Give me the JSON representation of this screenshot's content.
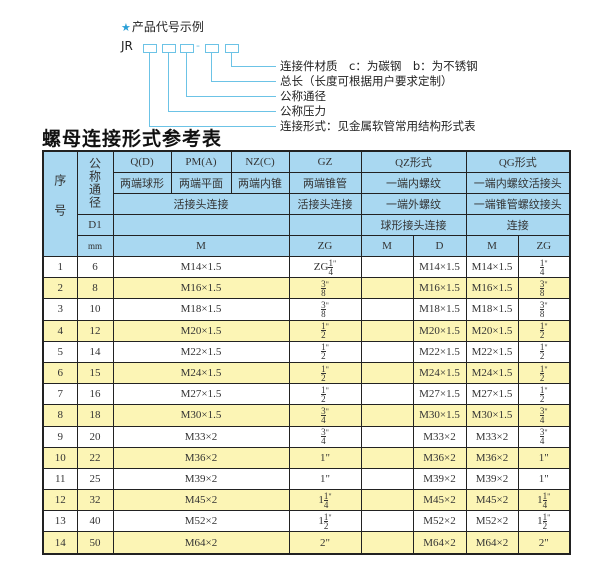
{
  "code_example": {
    "caption": "产品代号示例",
    "star_icon": "star-icon",
    "prefix": "JR",
    "separator": "-",
    "labels": [
      "连接件材质　c：为碳钢　b：为不锈钢",
      "总长（长度可根据用户要求定制）",
      "公称通径",
      "公称压力",
      "连接形式：见金属软管常用结构形式表"
    ]
  },
  "table_title": "螺母连接形式参考表",
  "table": {
    "header": {
      "seq": "序号",
      "nominal": "公称通径",
      "d1": "D1",
      "mm": "mm",
      "qd": "Q(D)",
      "pm": "PM(A)",
      "nz": "NZ(C)",
      "gz": "GZ",
      "qz": "QZ形式",
      "qg": "QG形式",
      "qd_desc": "两端球形",
      "pm_desc": "两端平面",
      "nz_desc": "两端内锥",
      "gz_desc": "两端锥管",
      "qz_desc1": "一端内螺纹",
      "qg_desc1": "一端内螺纹活接头",
      "union1": "活接头连接",
      "union2": "活接头连接",
      "qz_desc2": "一端外螺纹",
      "qg_desc2": "一端锥管螺纹接头",
      "qz_desc3": "球形接头连接",
      "qg_desc3": "连接",
      "m": "M",
      "zg": "ZG",
      "qz_m": "M",
      "qz_d": "D",
      "qg_m": "M",
      "qg_zg": "ZG"
    },
    "rows": [
      {
        "no": "1",
        "dn": "6",
        "m": "M14×1.5",
        "zg": {
          "pre": "ZG",
          "whole": "",
          "num": "1",
          "den": "4",
          "text": ""
        },
        "qz_m": "",
        "qz_d": "M14×1.5",
        "qg_m": "M14×1.5",
        "qg_zg": {
          "whole": "",
          "num": "1",
          "den": "4",
          "text": ""
        }
      },
      {
        "no": "2",
        "dn": "8",
        "m": "M16×1.5",
        "zg": {
          "pre": "",
          "whole": "",
          "num": "3",
          "den": "8",
          "text": ""
        },
        "qz_m": "",
        "qz_d": "M16×1.5",
        "qg_m": "M16×1.5",
        "qg_zg": {
          "whole": "",
          "num": "3",
          "den": "8",
          "text": ""
        }
      },
      {
        "no": "3",
        "dn": "10",
        "m": "M18×1.5",
        "zg": {
          "pre": "",
          "whole": "",
          "num": "3",
          "den": "8",
          "text": ""
        },
        "qz_m": "",
        "qz_d": "M18×1.5",
        "qg_m": "M18×1.5",
        "qg_zg": {
          "whole": "",
          "num": "3",
          "den": "8",
          "text": ""
        }
      },
      {
        "no": "4",
        "dn": "12",
        "m": "M20×1.5",
        "zg": {
          "pre": "",
          "whole": "",
          "num": "1",
          "den": "2",
          "text": ""
        },
        "qz_m": "",
        "qz_d": "M20×1.5",
        "qg_m": "M20×1.5",
        "qg_zg": {
          "whole": "",
          "num": "1",
          "den": "2",
          "text": ""
        }
      },
      {
        "no": "5",
        "dn": "14",
        "m": "M22×1.5",
        "zg": {
          "pre": "",
          "whole": "",
          "num": "1",
          "den": "2",
          "text": ""
        },
        "qz_m": "",
        "qz_d": "M22×1.5",
        "qg_m": "M22×1.5",
        "qg_zg": {
          "whole": "",
          "num": "1",
          "den": "2",
          "text": ""
        }
      },
      {
        "no": "6",
        "dn": "15",
        "m": "M24×1.5",
        "zg": {
          "pre": "",
          "whole": "",
          "num": "1",
          "den": "2",
          "text": ""
        },
        "qz_m": "",
        "qz_d": "M24×1.5",
        "qg_m": "M24×1.5",
        "qg_zg": {
          "whole": "",
          "num": "1",
          "den": "2",
          "text": ""
        }
      },
      {
        "no": "7",
        "dn": "16",
        "m": "M27×1.5",
        "zg": {
          "pre": "",
          "whole": "",
          "num": "1",
          "den": "2",
          "text": ""
        },
        "qz_m": "",
        "qz_d": "M27×1.5",
        "qg_m": "M27×1.5",
        "qg_zg": {
          "whole": "",
          "num": "1",
          "den": "2",
          "text": ""
        }
      },
      {
        "no": "8",
        "dn": "18",
        "m": "M30×1.5",
        "zg": {
          "pre": "",
          "whole": "",
          "num": "3",
          "den": "4",
          "text": ""
        },
        "qz_m": "",
        "qz_d": "M30×1.5",
        "qg_m": "M30×1.5",
        "qg_zg": {
          "whole": "",
          "num": "3",
          "den": "4",
          "text": ""
        }
      },
      {
        "no": "9",
        "dn": "20",
        "m": "M33×2",
        "zg": {
          "pre": "",
          "whole": "",
          "num": "3",
          "den": "4",
          "text": ""
        },
        "qz_m": "",
        "qz_d": "M33×2",
        "qg_m": "M33×2",
        "qg_zg": {
          "whole": "",
          "num": "3",
          "den": "4",
          "text": ""
        }
      },
      {
        "no": "10",
        "dn": "22",
        "m": "M36×2",
        "zg": {
          "pre": "",
          "whole": "",
          "num": "",
          "den": "",
          "text": "1\""
        },
        "qz_m": "",
        "qz_d": "M36×2",
        "qg_m": "M36×2",
        "qg_zg": {
          "whole": "",
          "num": "",
          "den": "",
          "text": "1\""
        }
      },
      {
        "no": "11",
        "dn": "25",
        "m": "M39×2",
        "zg": {
          "pre": "",
          "whole": "",
          "num": "",
          "den": "",
          "text": "1\""
        },
        "qz_m": "",
        "qz_d": "M39×2",
        "qg_m": "M39×2",
        "qg_zg": {
          "whole": "",
          "num": "",
          "den": "",
          "text": "1\""
        }
      },
      {
        "no": "12",
        "dn": "32",
        "m": "M45×2",
        "zg": {
          "pre": "",
          "whole": "1",
          "num": "1",
          "den": "4",
          "text": ""
        },
        "qz_m": "",
        "qz_d": "M45×2",
        "qg_m": "M45×2",
        "qg_zg": {
          "whole": "1",
          "num": "1",
          "den": "4",
          "text": ""
        }
      },
      {
        "no": "13",
        "dn": "40",
        "m": "M52×2",
        "zg": {
          "pre": "",
          "whole": "1",
          "num": "1",
          "den": "2",
          "text": ""
        },
        "qz_m": "",
        "qz_d": "M52×2",
        "qg_m": "M52×2",
        "qg_zg": {
          "whole": "1",
          "num": "1",
          "den": "2",
          "text": ""
        }
      },
      {
        "no": "14",
        "dn": "50",
        "m": "M64×2",
        "zg": {
          "pre": "",
          "whole": "",
          "num": "",
          "den": "",
          "text": "2\""
        },
        "qz_m": "",
        "qz_d": "M64×2",
        "qg_m": "M64×2",
        "qg_zg": {
          "whole": "",
          "num": "",
          "den": "",
          "text": "2\""
        }
      }
    ]
  },
  "colors": {
    "header_bg": "#a9d8f1",
    "alt_row_bg": "#fcf5b5",
    "accent": "#6cc3e6"
  }
}
